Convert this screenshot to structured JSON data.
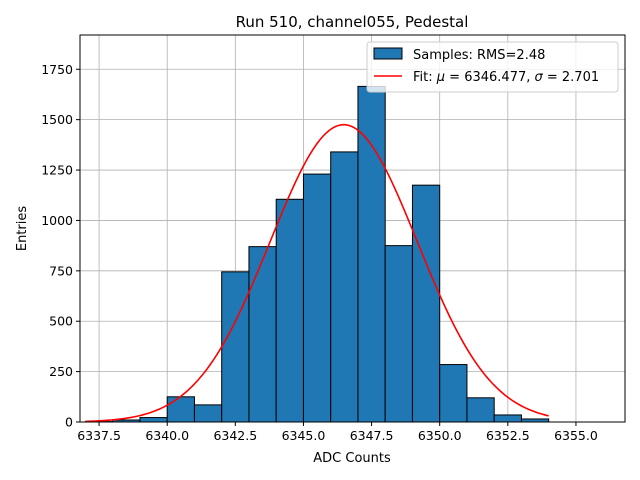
{
  "chart_data": {
    "type": "bar",
    "subtype": "histogram",
    "title": "Run 510, channel055, Pedestal",
    "xlabel": "ADC Counts",
    "ylabel": "Entries",
    "xlim": [
      6336.8,
      6356.8
    ],
    "ylim": [
      0,
      1920
    ],
    "grid": true,
    "legend_position": "top-right",
    "xticks": [
      6337.5,
      6340.0,
      6342.5,
      6345.0,
      6347.5,
      6350.0,
      6352.5,
      6355.0
    ],
    "xtick_labels": [
      "6337.5",
      "6340.0",
      "6342.5",
      "6345.0",
      "6347.5",
      "6350.0",
      "6352.5",
      "6355.0"
    ],
    "yticks": [
      0,
      250,
      500,
      750,
      1000,
      1250,
      1500,
      1750
    ],
    "ytick_labels": [
      "0",
      "250",
      "500",
      "750",
      "1000",
      "1250",
      "1500",
      "1750"
    ],
    "bins": [
      {
        "start": 6337,
        "end": 6338,
        "value": 2
      },
      {
        "start": 6338,
        "end": 6339,
        "value": 10
      },
      {
        "start": 6339,
        "end": 6340,
        "value": 22
      },
      {
        "start": 6340,
        "end": 6341,
        "value": 125
      },
      {
        "start": 6341,
        "end": 6342,
        "value": 85
      },
      {
        "start": 6342,
        "end": 6343,
        "value": 745
      },
      {
        "start": 6343,
        "end": 6344,
        "value": 870
      },
      {
        "start": 6344,
        "end": 6345,
        "value": 1105
      },
      {
        "start": 6345,
        "end": 6346,
        "value": 1230
      },
      {
        "start": 6346,
        "end": 6347,
        "value": 1340
      },
      {
        "start": 6347,
        "end": 6348,
        "value": 1665
      },
      {
        "start": 6348,
        "end": 6349,
        "value": 875
      },
      {
        "start": 6349,
        "end": 6350,
        "value": 1175
      },
      {
        "start": 6350,
        "end": 6351,
        "value": 285
      },
      {
        "start": 6351,
        "end": 6352,
        "value": 120
      },
      {
        "start": 6352,
        "end": 6353,
        "value": 35
      },
      {
        "start": 6353,
        "end": 6354,
        "value": 15
      }
    ],
    "fit": {
      "type": "gaussian",
      "mu": 6346.477,
      "sigma": 2.701,
      "amplitude": 1475,
      "x_range": [
        6337.0,
        6354.0
      ]
    },
    "series": [
      {
        "name": "Samples: RMS=2.48",
        "kind": "histogram",
        "color": "#1f77b4",
        "edge_color": "#000000"
      },
      {
        "name": "Fit: μ = 6346.477, σ = 2.701",
        "kind": "line",
        "color": "#ff0000"
      }
    ]
  },
  "legend": {
    "samples_label": "Samples: RMS=2.48",
    "fit_prefix": "Fit: ",
    "mu_symbol": "μ",
    "mu_text": " = 6346.477, ",
    "sigma_symbol": "σ",
    "sigma_text": " = 2.701"
  }
}
